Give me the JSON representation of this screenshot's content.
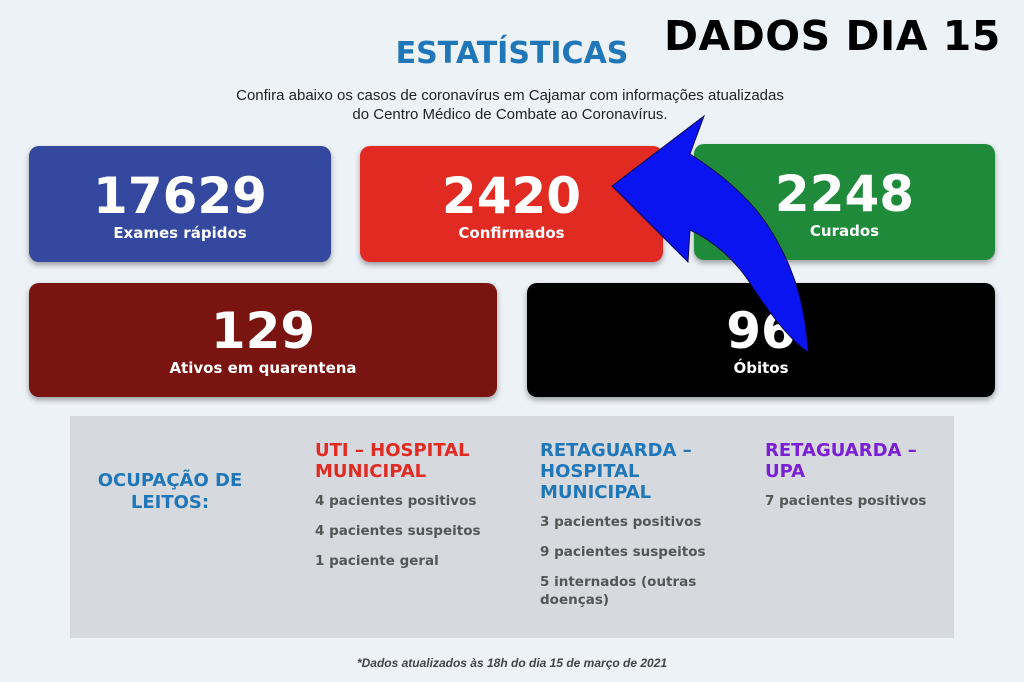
{
  "headline": "DADOS DIA 15",
  "title": "ESTATÍSTICAS",
  "subtitle_line1": "Confira abaixo os casos de coronavírus em Cajamar com informações atualizadas",
  "subtitle_line2": "do Centro Médico de Combate ao Coronavírus.",
  "cards": [
    {
      "value": "17629",
      "label": "Exames rápidos",
      "color": "#3448a0"
    },
    {
      "value": "2420",
      "label": "Confirmados",
      "color": "#e02a22"
    },
    {
      "value": "2248",
      "label": "Curados",
      "color": "#1f8a3a"
    },
    {
      "value": "129",
      "label": "Ativos em quarentena",
      "color": "#7a1410"
    },
    {
      "value": "96",
      "label": "Óbitos",
      "color": "#000000"
    }
  ],
  "occupancy": {
    "label": "OCUPAÇÃO DE LEITOS:",
    "columns": [
      {
        "title": "UTI – HOSPITAL MUNICIPAL",
        "items": [
          "4 pacientes positivos",
          "4 pacientes suspeitos",
          "1 paciente geral"
        ]
      },
      {
        "title": "RETAGUARDA – HOSPITAL MUNICIPAL",
        "items": [
          "3 pacientes positivos",
          "9 pacientes suspeitos",
          "5 internados (outras doenças)"
        ]
      },
      {
        "title": "RETAGUARDA – UPA",
        "items": [
          "7 pacientes positivos"
        ]
      }
    ]
  },
  "footnote": "*Dados atualizados às 18h do dia 15 de março de 2021",
  "colors": {
    "title_blue": "#1f76b8",
    "arrow": "#0a14f0",
    "panel": "#d6d9dd"
  }
}
